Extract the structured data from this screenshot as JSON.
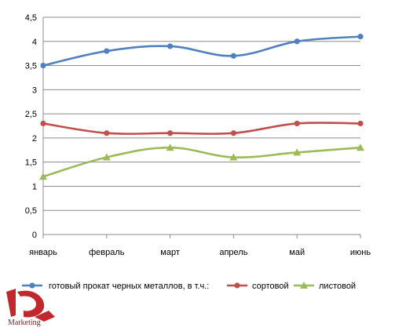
{
  "chart_data": {
    "type": "line",
    "title": "",
    "xlabel": "",
    "ylabel": "",
    "categories": [
      "январь",
      "февраль",
      "март",
      "апрель",
      "май",
      "июнь"
    ],
    "ylim": [
      0,
      4.5
    ],
    "yticks": [
      "0",
      "0,5",
      "1",
      "1,5",
      "2",
      "2,5",
      "3",
      "3,5",
      "4",
      "4,5"
    ],
    "grid": "horizontal",
    "legend_position": "bottom",
    "series": [
      {
        "name": "готовый прокат черных металлов, в т.ч.:",
        "values": [
          3.5,
          3.8,
          3.9,
          3.7,
          4.0,
          4.1
        ],
        "color": "#4f81bd",
        "marker": "circle"
      },
      {
        "name": "сортовой",
        "values": [
          2.3,
          2.1,
          2.1,
          2.1,
          2.3,
          2.3
        ],
        "color": "#c0504d",
        "marker": "circle"
      },
      {
        "name": "листовой",
        "values": [
          1.2,
          1.6,
          1.8,
          1.6,
          1.7,
          1.8
        ],
        "color": "#9bbb59",
        "marker": "triangle"
      }
    ]
  },
  "logo": {
    "text": "Marketing",
    "mark": "D",
    "color": "#c0282d"
  }
}
